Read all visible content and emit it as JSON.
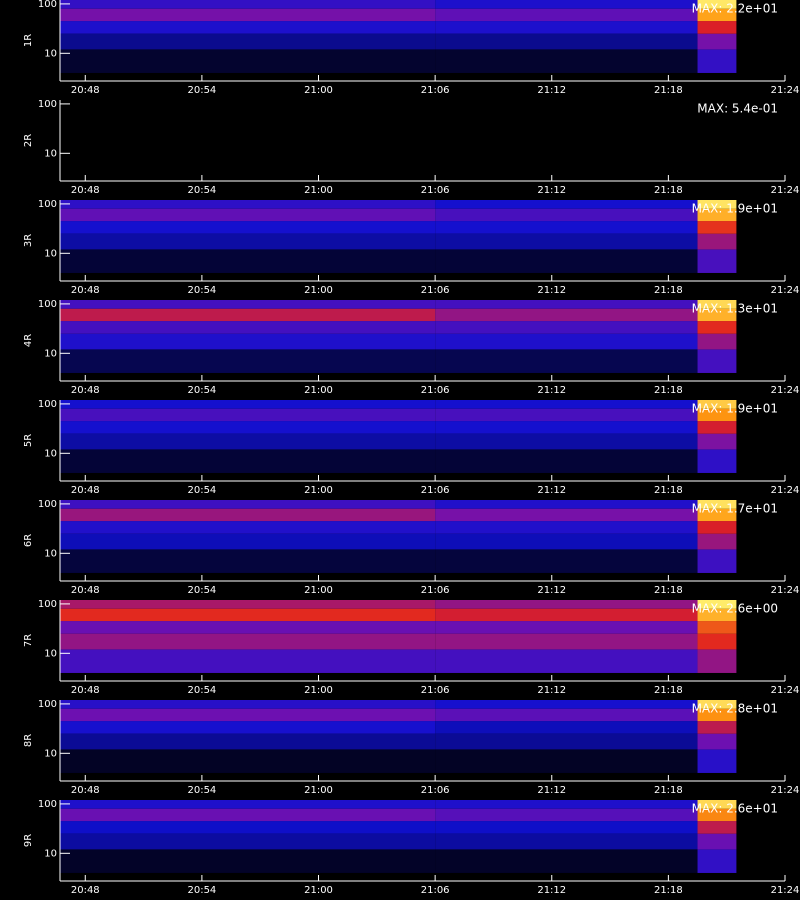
{
  "chart_data": [
    {
      "type": "spectrogram",
      "ylabel": "1R",
      "max_label": "MAX: 2.2e+01",
      "zlim": [
        0,
        22
      ],
      "log_y": true,
      "colormap": [
        "#000000",
        "#1010d0",
        "#7010b0",
        "#e02020",
        "#ff9a10",
        "#ffff80"
      ],
      "xlim": [
        1246.7,
        1284
      ],
      "xticks": [
        {
          "value": 1248,
          "label": "20:48"
        },
        {
          "value": 1254,
          "label": "20:54"
        },
        {
          "value": 1260,
          "label": "21:00"
        },
        {
          "value": 1266,
          "label": "21:06"
        },
        {
          "value": 1272,
          "label": "21:12"
        },
        {
          "value": 1278,
          "label": "21:18"
        },
        {
          "value": 1284,
          "label": "21:24"
        }
      ],
      "ylim": [
        2.75,
        120
      ],
      "yticks": [
        10,
        100
      ],
      "time_edges": [
        1246.7,
        1266,
        1279.5,
        1281.5
      ],
      "y_edges": [
        4,
        12,
        25,
        45,
        80,
        120
      ],
      "values": [
        [
          1,
          1,
          6
        ],
        [
          3,
          3,
          9
        ],
        [
          5,
          5,
          13
        ],
        [
          9,
          8,
          18
        ],
        [
          6,
          5,
          21
        ]
      ]
    },
    {
      "type": "spectrogram",
      "ylabel": "2R",
      "max_label": "MAX: 5.4e-01",
      "zlim": [
        0,
        0.54
      ],
      "log_y": true,
      "colormap": [
        "#000000",
        "#1010d0",
        "#7010b0",
        "#e02020",
        "#ff9a10",
        "#ffff80"
      ],
      "xlim": [
        1246.7,
        1284
      ],
      "xticks": [
        {
          "value": 1248,
          "label": "20:48"
        },
        {
          "value": 1254,
          "label": "20:54"
        },
        {
          "value": 1260,
          "label": "21:00"
        },
        {
          "value": 1266,
          "label": "21:06"
        },
        {
          "value": 1272,
          "label": "21:12"
        },
        {
          "value": 1278,
          "label": "21:18"
        },
        {
          "value": 1284,
          "label": "21:24"
        }
      ],
      "ylim": [
        2.75,
        120
      ],
      "yticks": [
        10,
        100
      ],
      "time_edges": [
        1246.7,
        1266,
        1279.5,
        1281.5
      ],
      "y_edges": [
        4,
        12,
        25,
        45,
        80,
        120
      ],
      "values": [
        [
          0,
          0,
          0
        ],
        [
          0,
          0,
          0
        ],
        [
          0,
          0,
          0
        ],
        [
          0,
          0,
          0
        ],
        [
          0,
          0,
          0
        ]
      ]
    },
    {
      "type": "spectrogram",
      "ylabel": "3R",
      "max_label": "MAX: 1.9e+01",
      "zlim": [
        0,
        19
      ],
      "log_y": true,
      "colormap": [
        "#000000",
        "#1010d0",
        "#7010b0",
        "#e02020",
        "#ff9a10",
        "#ffff80"
      ],
      "xlim": [
        1246.7,
        1284
      ],
      "xticks": [
        {
          "value": 1248,
          "label": "20:48"
        },
        {
          "value": 1254,
          "label": "20:54"
        },
        {
          "value": 1260,
          "label": "21:00"
        },
        {
          "value": 1266,
          "label": "21:06"
        },
        {
          "value": 1272,
          "label": "21:12"
        },
        {
          "value": 1278,
          "label": "21:18"
        },
        {
          "value": 1284,
          "label": "21:24"
        }
      ],
      "ylim": [
        2.75,
        120
      ],
      "yticks": [
        10,
        100
      ],
      "time_edges": [
        1246.7,
        1266,
        1279.5,
        1281.5
      ],
      "y_edges": [
        4,
        12,
        25,
        45,
        80,
        120
      ],
      "values": [
        [
          1,
          1,
          6
        ],
        [
          3,
          3,
          9
        ],
        [
          4,
          4,
          12
        ],
        [
          7,
          6,
          16
        ],
        [
          5,
          4,
          18
        ]
      ]
    },
    {
      "type": "spectrogram",
      "ylabel": "4R",
      "max_label": "MAX: 1.3e+01",
      "zlim": [
        0,
        13
      ],
      "log_y": true,
      "colormap": [
        "#000000",
        "#1010d0",
        "#7010b0",
        "#e02020",
        "#ff9a10",
        "#ffff80"
      ],
      "xlim": [
        1246.7,
        1284
      ],
      "xticks": [
        {
          "value": 1248,
          "label": "20:48"
        },
        {
          "value": 1254,
          "label": "20:54"
        },
        {
          "value": 1260,
          "label": "21:00"
        },
        {
          "value": 1266,
          "label": "21:06"
        },
        {
          "value": 1272,
          "label": "21:12"
        },
        {
          "value": 1278,
          "label": "21:18"
        },
        {
          "value": 1284,
          "label": "21:24"
        }
      ],
      "ylim": [
        2.75,
        120
      ],
      "yticks": [
        10,
        100
      ],
      "time_edges": [
        1246.7,
        1266,
        1279.5,
        1281.5
      ],
      "y_edges": [
        4,
        12,
        25,
        45,
        80,
        120
      ],
      "values": [
        [
          1,
          1,
          4
        ],
        [
          3,
          3,
          6
        ],
        [
          4,
          4,
          8
        ],
        [
          7,
          6,
          11
        ],
        [
          4,
          4,
          12
        ]
      ]
    },
    {
      "type": "spectrogram",
      "ylabel": "5R",
      "max_label": "MAX: 1.9e+01",
      "zlim": [
        0,
        19
      ],
      "log_y": true,
      "colormap": [
        "#000000",
        "#1010d0",
        "#7010b0",
        "#e02020",
        "#ff9a10",
        "#ffff80"
      ],
      "xlim": [
        1246.7,
        1284
      ],
      "xticks": [
        {
          "value": 1248,
          "label": "20:48"
        },
        {
          "value": 1254,
          "label": "20:54"
        },
        {
          "value": 1260,
          "label": "21:00"
        },
        {
          "value": 1266,
          "label": "21:06"
        },
        {
          "value": 1272,
          "label": "21:12"
        },
        {
          "value": 1278,
          "label": "21:18"
        },
        {
          "value": 1284,
          "label": "21:24"
        }
      ],
      "ylim": [
        2.75,
        120
      ],
      "yticks": [
        10,
        100
      ],
      "time_edges": [
        1246.7,
        1266,
        1279.5,
        1281.5
      ],
      "y_edges": [
        4,
        12,
        25,
        45,
        80,
        120
      ],
      "values": [
        [
          1,
          1,
          5
        ],
        [
          3,
          3,
          8
        ],
        [
          4,
          4,
          11
        ],
        [
          6,
          6,
          15
        ],
        [
          4,
          4,
          17
        ]
      ]
    },
    {
      "type": "spectrogram",
      "ylabel": "6R",
      "max_label": "MAX: 1.7e+01",
      "zlim": [
        0,
        17
      ],
      "log_y": true,
      "colormap": [
        "#000000",
        "#1010d0",
        "#7010b0",
        "#e02020",
        "#ff9a10",
        "#ffff80"
      ],
      "xlim": [
        1246.7,
        1284
      ],
      "xticks": [
        {
          "value": 1248,
          "label": "20:48"
        },
        {
          "value": 1254,
          "label": "20:54"
        },
        {
          "value": 1260,
          "label": "21:00"
        },
        {
          "value": 1266,
          "label": "21:06"
        },
        {
          "value": 1272,
          "label": "21:12"
        },
        {
          "value": 1278,
          "label": "21:18"
        },
        {
          "value": 1284,
          "label": "21:24"
        }
      ],
      "ylim": [
        2.75,
        120
      ],
      "yticks": [
        10,
        100
      ],
      "time_edges": [
        1246.7,
        1266,
        1279.5,
        1281.5
      ],
      "y_edges": [
        4,
        12,
        25,
        45,
        80,
        120
      ],
      "values": [
        [
          1,
          1,
          5
        ],
        [
          3,
          3,
          8
        ],
        [
          4,
          4,
          10
        ],
        [
          8,
          7,
          14
        ],
        [
          5,
          4,
          16
        ]
      ]
    },
    {
      "type": "spectrogram",
      "ylabel": "7R",
      "max_label": "MAX: 2.6e+00",
      "zlim": [
        0,
        2.6
      ],
      "log_y": true,
      "colormap": [
        "#000000",
        "#1010d0",
        "#7010b0",
        "#e02020",
        "#ff9a10",
        "#ffff80"
      ],
      "xlim": [
        1246.7,
        1284
      ],
      "xticks": [
        {
          "value": 1248,
          "label": "20:48"
        },
        {
          "value": 1254,
          "label": "20:54"
        },
        {
          "value": 1260,
          "label": "21:00"
        },
        {
          "value": 1266,
          "label": "21:06"
        },
        {
          "value": 1272,
          "label": "21:12"
        },
        {
          "value": 1278,
          "label": "21:18"
        },
        {
          "value": 1284,
          "label": "21:24"
        }
      ],
      "ylim": [
        2.75,
        120
      ],
      "yticks": [
        10,
        100
      ],
      "time_edges": [
        1246.7,
        1266,
        1279.5,
        1281.5
      ],
      "y_edges": [
        4,
        12,
        25,
        45,
        80,
        120
      ],
      "values": [
        [
          0.8,
          0.8,
          1.2
        ],
        [
          1.2,
          1.2,
          1.6
        ],
        [
          1.0,
          1.0,
          1.8
        ],
        [
          1.6,
          1.5,
          2.2
        ],
        [
          1.3,
          1.2,
          2.5
        ]
      ]
    },
    {
      "type": "spectrogram",
      "ylabel": "8R",
      "max_label": "MAX: 2.8e+01",
      "zlim": [
        0,
        28
      ],
      "log_y": true,
      "colormap": [
        "#000000",
        "#1010d0",
        "#7010b0",
        "#e02020",
        "#ff9a10",
        "#ffff80"
      ],
      "xlim": [
        1246.7,
        1284
      ],
      "xticks": [
        {
          "value": 1248,
          "label": "20:48"
        },
        {
          "value": 1254,
          "label": "20:54"
        },
        {
          "value": 1260,
          "label": "21:00"
        },
        {
          "value": 1266,
          "label": "21:06"
        },
        {
          "value": 1272,
          "label": "21:12"
        },
        {
          "value": 1278,
          "label": "21:18"
        },
        {
          "value": 1284,
          "label": "21:24"
        }
      ],
      "ylim": [
        2.75,
        120
      ],
      "yticks": [
        10,
        100
      ],
      "time_edges": [
        1246.7,
        1266,
        1279.5,
        1281.5
      ],
      "y_edges": [
        4,
        12,
        25,
        45,
        80,
        120
      ],
      "values": [
        [
          1,
          1,
          7
        ],
        [
          4,
          4,
          11
        ],
        [
          6,
          5,
          15
        ],
        [
          11,
          10,
          22
        ],
        [
          7,
          6,
          26
        ]
      ]
    },
    {
      "type": "spectrogram",
      "ylabel": "9R",
      "max_label": "MAX: 2.6e+01",
      "zlim": [
        0,
        26
      ],
      "log_y": true,
      "colormap": [
        "#000000",
        "#1010d0",
        "#7010b0",
        "#e02020",
        "#ff9a10",
        "#ffff80"
      ],
      "xlim": [
        1246.7,
        1284
      ],
      "xticks": [
        {
          "value": 1248,
          "label": "20:48"
        },
        {
          "value": 1254,
          "label": "20:54"
        },
        {
          "value": 1260,
          "label": "21:00"
        },
        {
          "value": 1266,
          "label": "21:06"
        },
        {
          "value": 1272,
          "label": "21:12"
        },
        {
          "value": 1278,
          "label": "21:18"
        },
        {
          "value": 1284,
          "label": "21:24"
        }
      ],
      "ylim": [
        2.75,
        120
      ],
      "yticks": [
        10,
        100
      ],
      "time_edges": [
        1246.7,
        1266,
        1279.5,
        1281.5
      ],
      "y_edges": [
        4,
        12,
        25,
        45,
        80,
        120
      ],
      "values": [
        [
          1,
          1,
          7
        ],
        [
          4,
          4,
          10
        ],
        [
          5,
          5,
          14
        ],
        [
          10,
          9,
          20
        ],
        [
          6,
          6,
          24
        ]
      ]
    }
  ]
}
